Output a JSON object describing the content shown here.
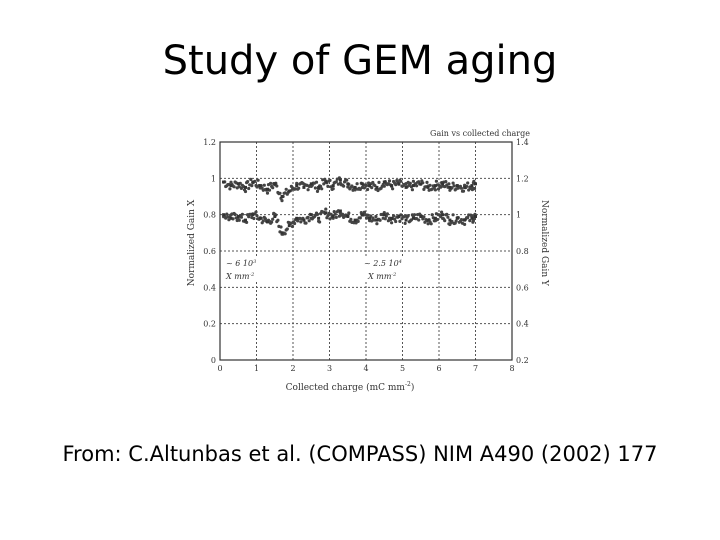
{
  "slide": {
    "title": "Study of GEM aging",
    "caption": "From: C.Altunbas et al. (COMPASS) NIM A490 (2002) 177"
  },
  "chart_data": {
    "type": "scatter",
    "title": "Gain vs collected charge",
    "xlabel": "Collected charge (mC mm",
    "xlabel_sup": "-2",
    "xlabel_close": ")",
    "ylabel_left": "Normalized Gain X",
    "ylabel_right": "Normalized Gain Y",
    "xlim": [
      0,
      8
    ],
    "ylim_left": [
      0,
      1.2
    ],
    "ylim_right": [
      0.2,
      1.4
    ],
    "x_ticks": [
      "0",
      "1",
      "2",
      "3",
      "4",
      "5",
      "6",
      "7",
      "8"
    ],
    "y_ticks_left": [
      "0",
      "0.2",
      "0.4",
      "0.6",
      "0.8",
      "1",
      "1.2"
    ],
    "y_ticks_right": [
      "0.2",
      "0.4",
      "0.6",
      "0.8",
      "1",
      "1.2",
      "1.4"
    ],
    "grid": true,
    "annotations": [
      {
        "line1": "~ 6 10",
        "sup": "3",
        "line2": "X mm",
        "sup2": "-2"
      },
      {
        "line1": "~ 2.5 10",
        "sup": "4",
        "line2": "X mm",
        "sup2": "-2"
      }
    ],
    "series": [
      {
        "axis": "left",
        "x": [
          0.1,
          0.3,
          0.5,
          0.7,
          0.9,
          1.1,
          1.3,
          1.5,
          1.7,
          1.9,
          2.1,
          2.3,
          2.5,
          2.7,
          2.9,
          3.1,
          3.3,
          3.5,
          3.7,
          3.9,
          4.1,
          4.3,
          4.5,
          4.7,
          4.9,
          5.1,
          5.3,
          5.5,
          5.7,
          5.9,
          6.1,
          6.3,
          6.5,
          6.7,
          6.9,
          7.0
        ],
        "y": [
          0.98,
          0.96,
          0.97,
          0.95,
          0.98,
          0.96,
          0.94,
          0.97,
          0.9,
          0.93,
          0.96,
          0.95,
          0.97,
          0.95,
          0.98,
          0.96,
          0.99,
          0.97,
          0.95,
          0.97,
          0.96,
          0.95,
          0.98,
          0.96,
          0.97,
          0.95,
          0.96,
          0.97,
          0.95,
          0.96,
          0.97,
          0.95,
          0.96,
          0.95,
          0.96,
          0.97
        ]
      },
      {
        "axis": "left",
        "x": [
          0.1,
          0.3,
          0.5,
          0.7,
          0.9,
          1.1,
          1.3,
          1.5,
          1.7,
          1.9,
          2.1,
          2.3,
          2.5,
          2.7,
          2.9,
          3.1,
          3.3,
          3.5,
          3.7,
          3.9,
          4.1,
          4.3,
          4.5,
          4.7,
          4.9,
          5.1,
          5.3,
          5.5,
          5.7,
          5.9,
          6.1,
          6.3,
          6.5,
          6.7,
          6.9,
          7.0
        ],
        "y": [
          0.8,
          0.78,
          0.79,
          0.77,
          0.8,
          0.78,
          0.76,
          0.79,
          0.7,
          0.74,
          0.78,
          0.77,
          0.8,
          0.78,
          0.81,
          0.79,
          0.82,
          0.79,
          0.77,
          0.8,
          0.78,
          0.77,
          0.8,
          0.78,
          0.79,
          0.77,
          0.78,
          0.79,
          0.77,
          0.78,
          0.8,
          0.77,
          0.78,
          0.77,
          0.78,
          0.79
        ]
      }
    ]
  }
}
